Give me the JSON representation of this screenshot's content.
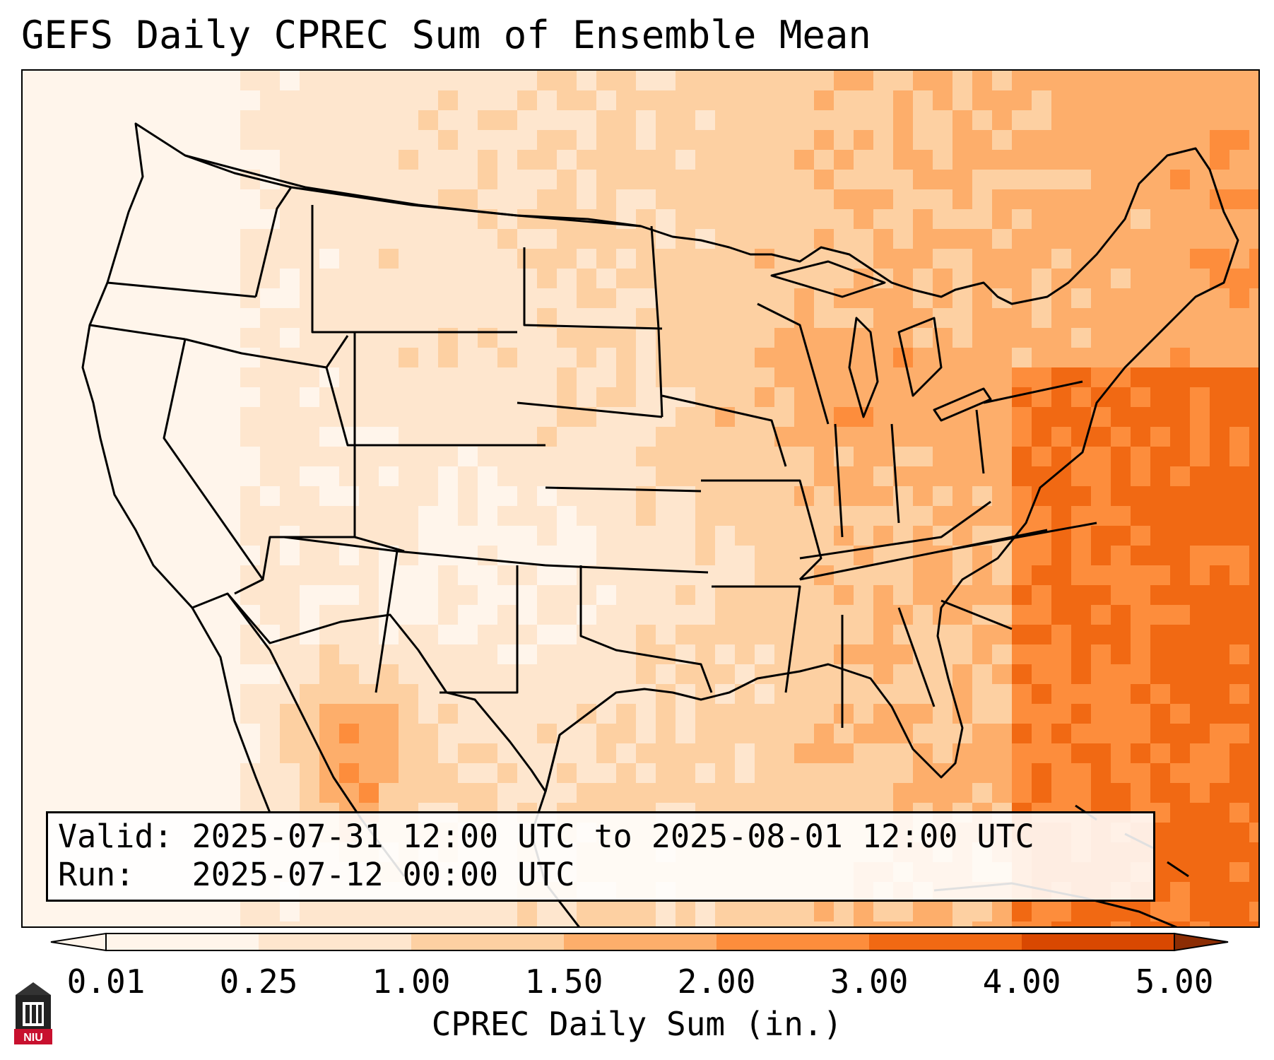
{
  "title": "GEFS Daily CPREC Sum of Ensemble Mean",
  "info": {
    "valid_line": "Valid: 2025-07-31 12:00 UTC to 2025-08-01 12:00 UTC",
    "run_line": "Run:   2025-07-12 00:00 UTC"
  },
  "colorbar": {
    "label": "CPREC Daily Sum (in.)",
    "ticks": [
      "0.01",
      "0.25",
      "1.00",
      "1.50",
      "2.00",
      "3.00",
      "4.00",
      "5.00"
    ],
    "colors": [
      "#fff5eb",
      "#fee6ce",
      "#fdd0a2",
      "#fdae6b",
      "#fd8d3c",
      "#f16913",
      "#d94801",
      "#8c2d04"
    ],
    "extend": "both"
  },
  "logo": {
    "text": "NIU"
  }
}
